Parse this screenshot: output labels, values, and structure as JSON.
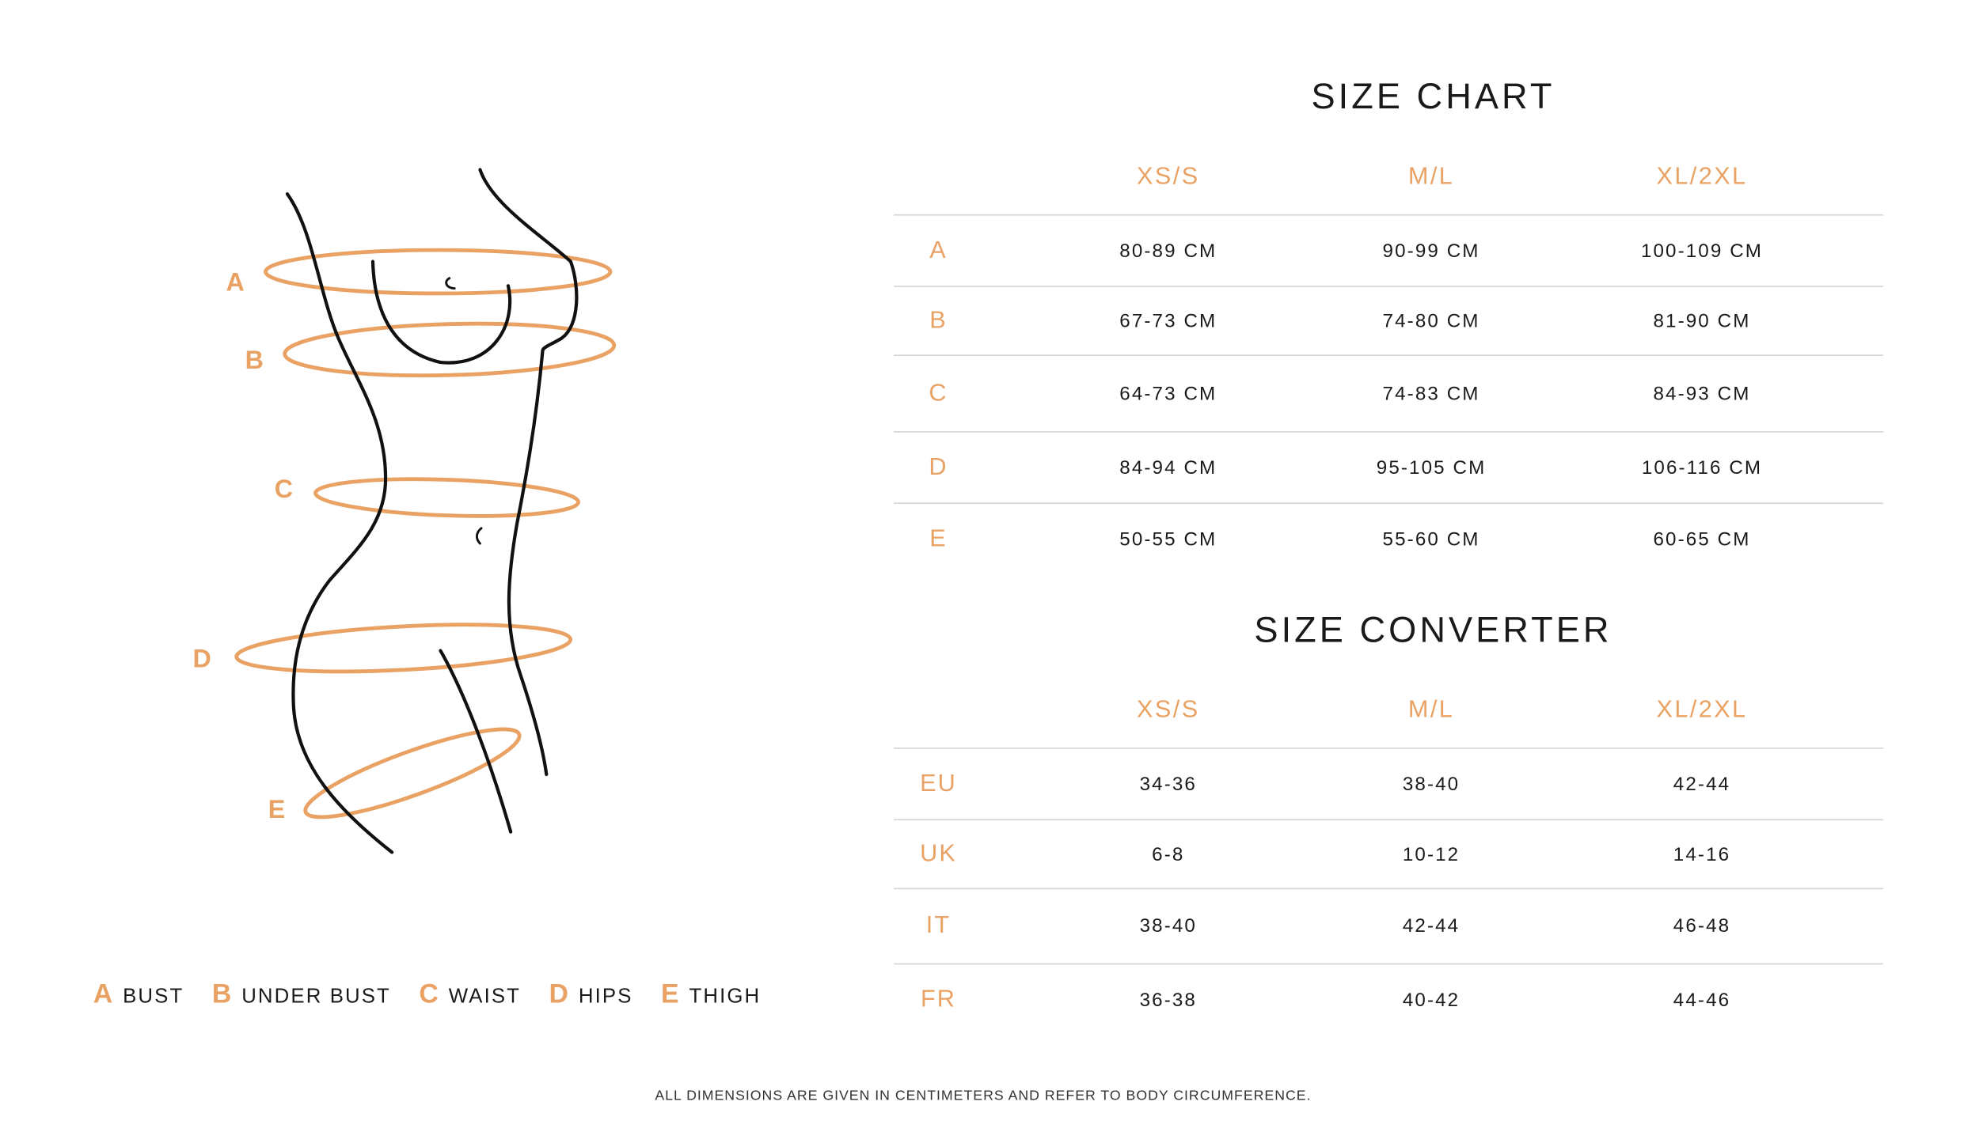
{
  "colors": {
    "accent": "#E9A263",
    "text": "#1a1a1a",
    "rule": "#d4d4d4"
  },
  "figure": {
    "labels": [
      "A",
      "B",
      "C",
      "D",
      "E"
    ]
  },
  "legend": [
    {
      "key": "A",
      "label": "BUST"
    },
    {
      "key": "B",
      "label": "UNDER BUST"
    },
    {
      "key": "C",
      "label": "WAIST"
    },
    {
      "key": "D",
      "label": "HIPS"
    },
    {
      "key": "E",
      "label": "THIGH"
    }
  ],
  "size_chart": {
    "title": "SIZE CHART",
    "columns": [
      "XS/S",
      "M/L",
      "XL/2XL"
    ],
    "rows": [
      {
        "label": "A",
        "values": [
          "80-89 CM",
          "90-99 CM",
          "100-109 CM"
        ]
      },
      {
        "label": "B",
        "values": [
          "67-73 CM",
          "74-80 CM",
          "81-90 CM"
        ]
      },
      {
        "label": "C",
        "values": [
          "64-73 CM",
          "74-83 CM",
          "84-93 CM"
        ]
      },
      {
        "label": "D",
        "values": [
          "84-94 CM",
          "95-105 CM",
          "106-116 CM"
        ]
      },
      {
        "label": "E",
        "values": [
          "50-55 CM",
          "55-60 CM",
          "60-65 CM"
        ]
      }
    ]
  },
  "size_converter": {
    "title": "SIZE CONVERTER",
    "columns": [
      "XS/S",
      "M/L",
      "XL/2XL"
    ],
    "rows": [
      {
        "label": "EU",
        "values": [
          "34-36",
          "38-40",
          "42-44"
        ]
      },
      {
        "label": "UK",
        "values": [
          "6-8",
          "10-12",
          "14-16"
        ]
      },
      {
        "label": "IT",
        "values": [
          "38-40",
          "42-44",
          "46-48"
        ]
      },
      {
        "label": "FR",
        "values": [
          "36-38",
          "40-42",
          "44-46"
        ]
      }
    ]
  },
  "footer": "ALL DIMENSIONS ARE GIVEN IN CENTIMETERS AND REFER TO BODY CIRCUMFERENCE."
}
